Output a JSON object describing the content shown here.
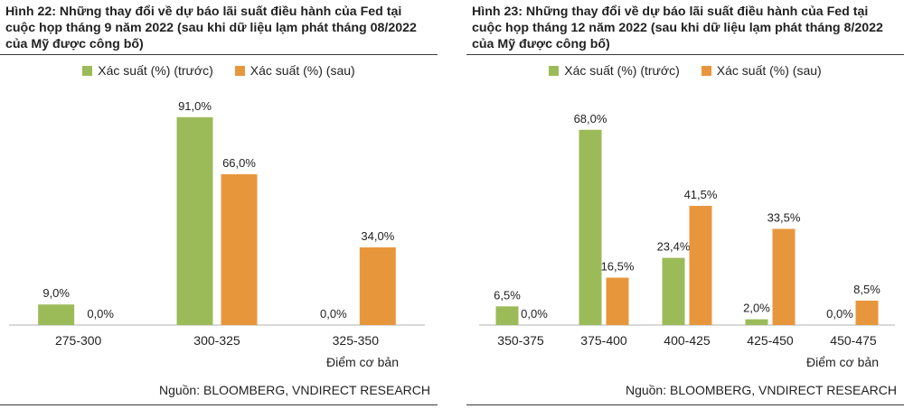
{
  "colors": {
    "before": "#9bbb59",
    "after": "#e8963c",
    "axis": "#b0b0b0"
  },
  "left": {
    "title": "Hình 22: Những thay đổi về dự báo lãi suất điều hành của Fed tại cuộc họp tháng 9 năm 2022 (sau khi dữ liệu lạm phát tháng 08/2022 của Mỹ được công bố)",
    "legend": [
      "Xác suất (%) (trước)",
      "Xác suất (%) (sau)"
    ],
    "unit_note": "Điểm cơ bản",
    "source": "Nguồn: BLOOMBERG, VNDIRECT RESEARCH",
    "chart_data": {
      "type": "bar",
      "categories": [
        "275-300",
        "300-325",
        "325-350"
      ],
      "series": [
        {
          "name": "Xác suất (%) (trước)",
          "values": [
            9.0,
            91.0,
            0.0
          ],
          "labels": [
            "9,0%",
            "91,0%",
            "0,0%"
          ]
        },
        {
          "name": "Xác suất (%) (sau)",
          "values": [
            0.0,
            66.0,
            34.0
          ],
          "labels": [
            "0,0%",
            "66,0%",
            "34,0%"
          ]
        }
      ],
      "xlabel": "Điểm cơ bản",
      "ylabel": "",
      "ylim": [
        0,
        100
      ],
      "grid": false,
      "legend_position": "top"
    }
  },
  "right": {
    "title": "Hình 23: Những thay đổi về dự báo lãi suất điều hành của Fed tại cuộc họp tháng 12 năm 2022 (sau khi dữ liệu lạm phát tháng 8/2022 của Mỹ được công bố)",
    "legend": [
      "Xác suất (%) (trước)",
      "Xác suất (%) (sau)"
    ],
    "unit_note": "Điểm cơ bản",
    "source": "Nguồn: BLOOMBERG, VNDIRECT RESEARCH",
    "chart_data": {
      "type": "bar",
      "categories": [
        "350-375",
        "375-400",
        "400-425",
        "425-450",
        "450-475"
      ],
      "series": [
        {
          "name": "Xác suất (%) (trước)",
          "values": [
            6.5,
            68.0,
            23.4,
            2.0,
            0.0
          ],
          "labels": [
            "6,5%",
            "68,0%",
            "23,4%",
            "2,0%",
            "0,0%"
          ]
        },
        {
          "name": "Xác suất (%) (sau)",
          "values": [
            0.0,
            16.5,
            41.5,
            33.5,
            8.5
          ],
          "labels": [
            "0,0%",
            "16,5%",
            "41,5%",
            "33,5%",
            "8,5%"
          ]
        }
      ],
      "xlabel": "Điểm cơ bản",
      "ylabel": "",
      "ylim": [
        0,
        80
      ],
      "grid": false,
      "legend_position": "top"
    }
  }
}
